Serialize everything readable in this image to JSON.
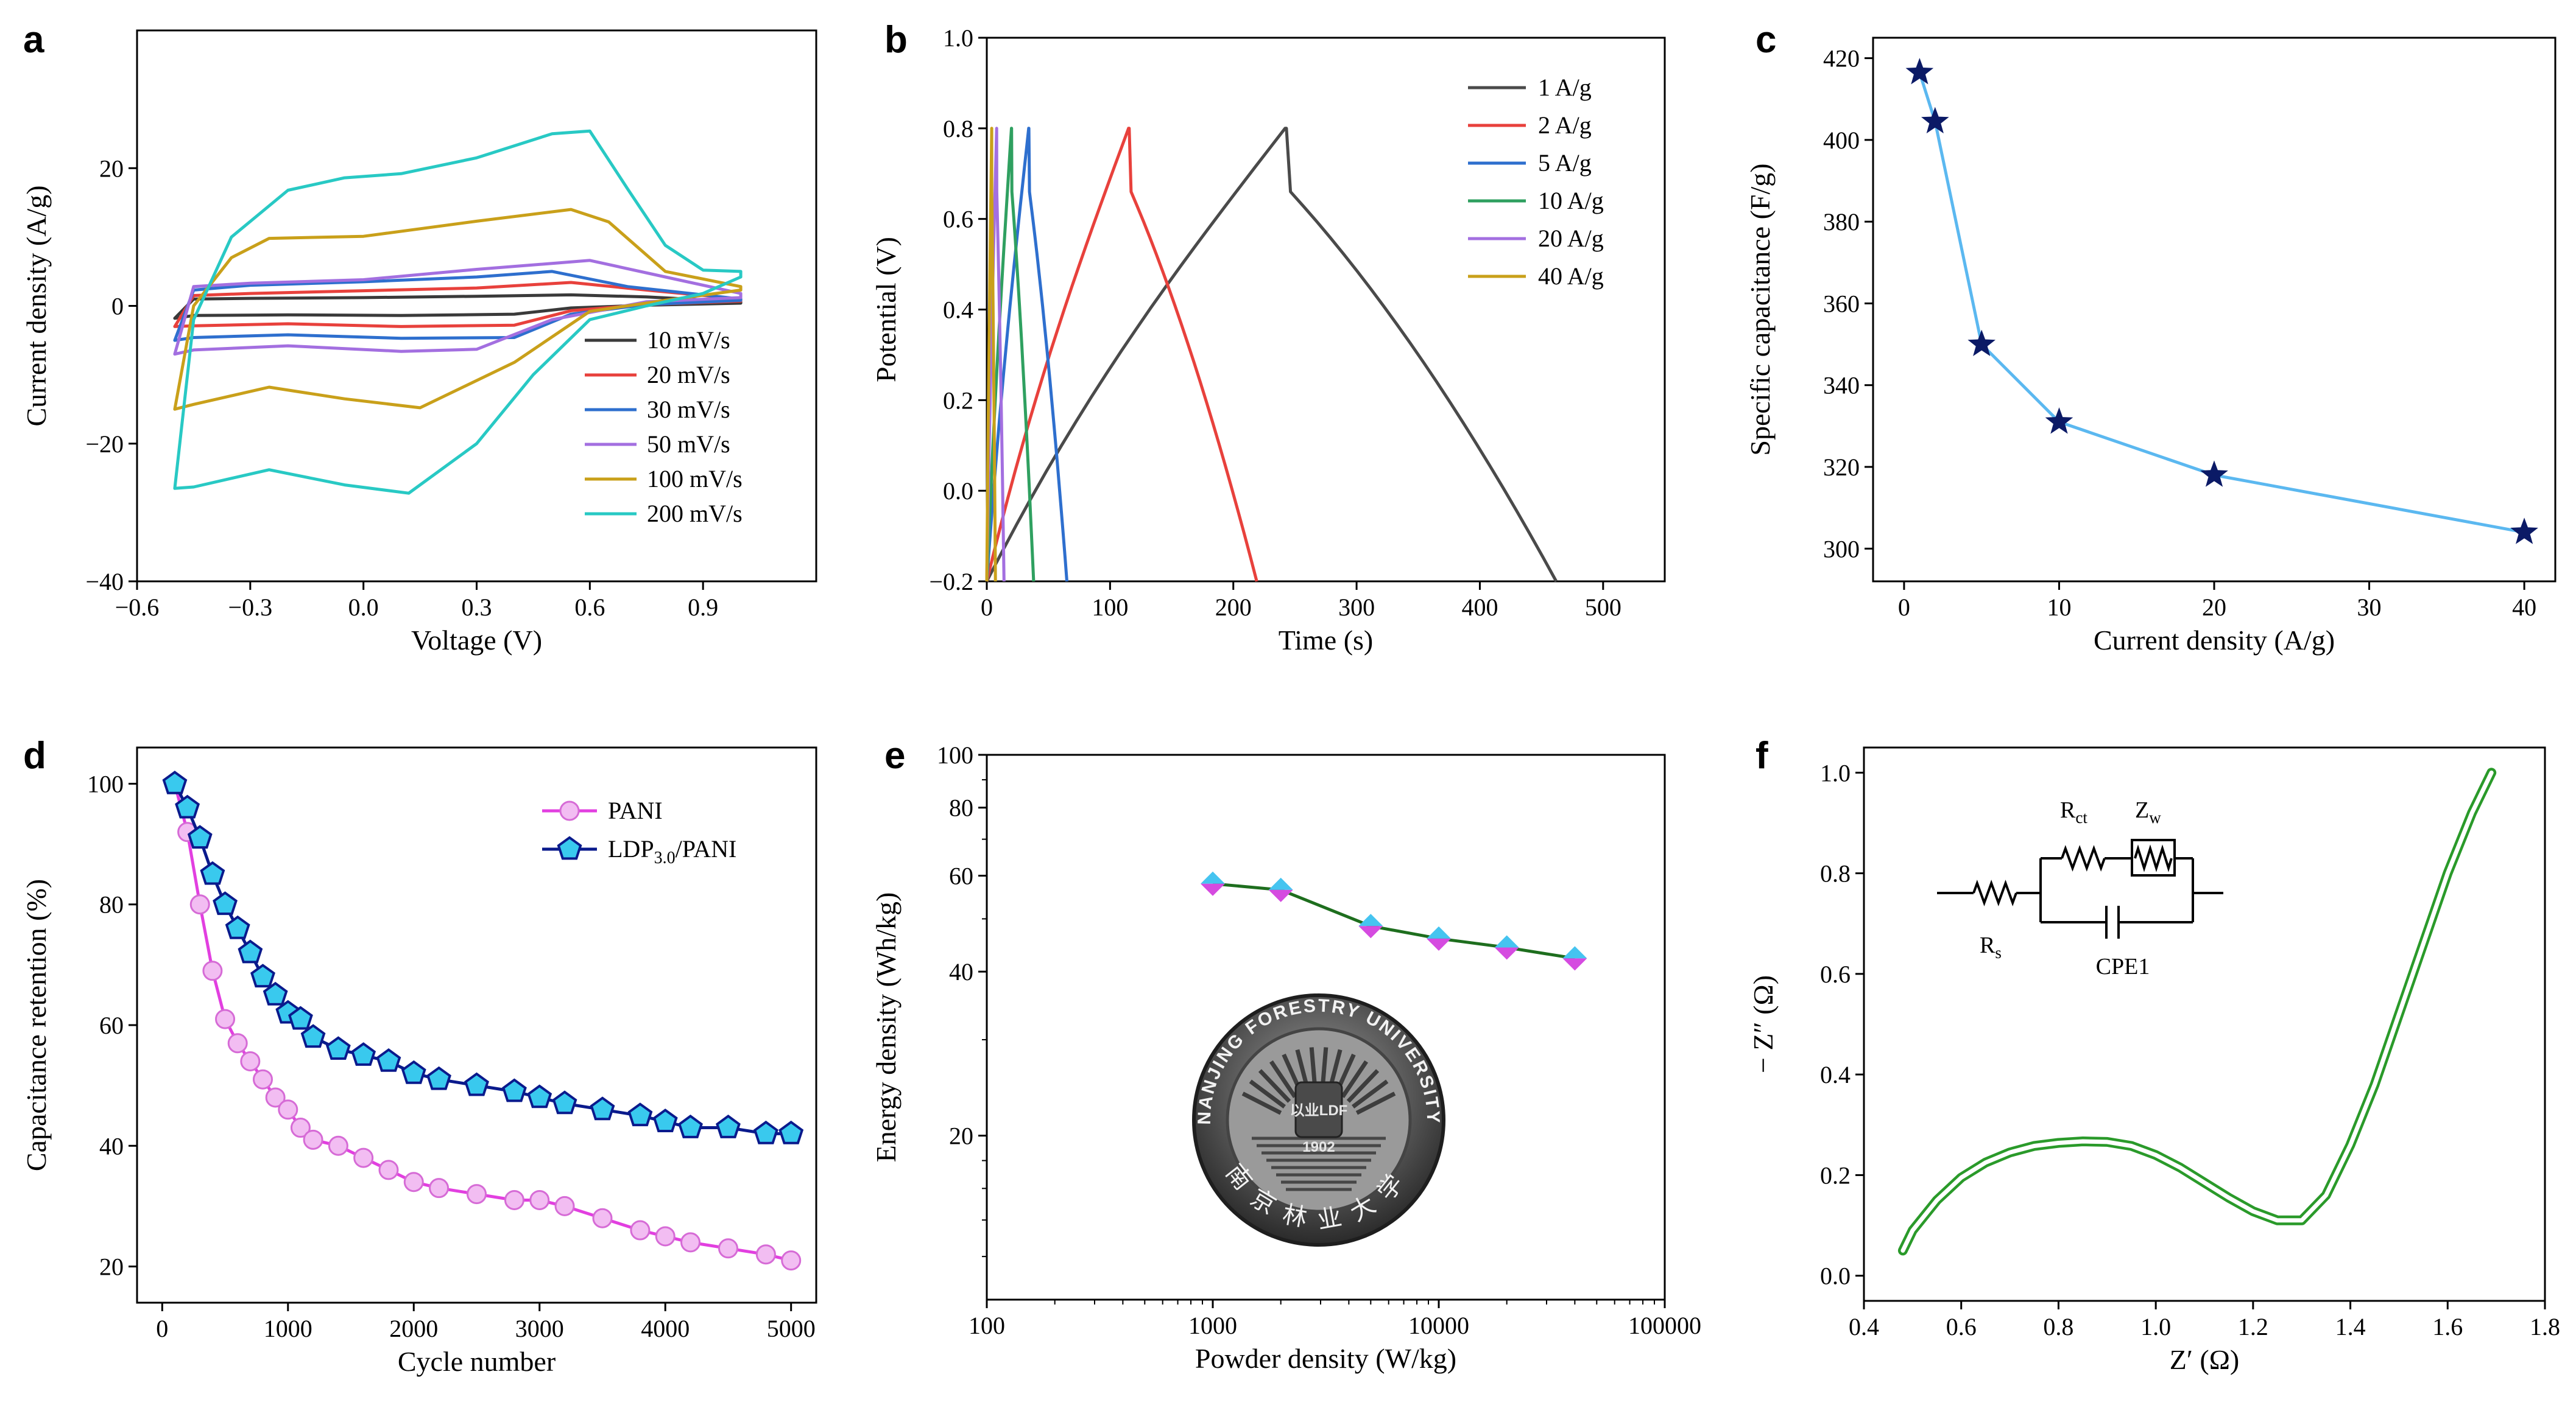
{
  "figure": {
    "seal": {
      "ring_text": "NANJING FORESTRY UNIVERSITY",
      "year": "1902",
      "crest_text": "以业LDF",
      "chinese_name": "南京林业大学"
    }
  },
  "chart_data": [
    {
      "panel": "a",
      "type": "line",
      "title": "",
      "xlabel": "Voltage (V)",
      "ylabel": "Current density (A/g)",
      "xlim": [
        -0.6,
        1.2
      ],
      "ylim": [
        -40,
        40
      ],
      "xticks": [
        -0.6,
        -0.3,
        0.0,
        0.3,
        0.6,
        0.9
      ],
      "xtick_labels": [
        "−0.6",
        "−0.3",
        "0.0",
        "0.3",
        "0.6",
        "0.9"
      ],
      "yticks": [
        -40,
        -20,
        0,
        20
      ],
      "ytick_labels": [
        "−40",
        "−20",
        "0",
        "20"
      ],
      "legend_position": "lower-right",
      "series": [
        {
          "name": "10 mV/s",
          "color": "#3a3a3a",
          "upper": [
            [
              -0.5,
              -1.8
            ],
            [
              -0.45,
              1.0
            ],
            [
              -0.3,
              1.1
            ],
            [
              0.0,
              1.2
            ],
            [
              0.3,
              1.4
            ],
            [
              0.55,
              1.6
            ],
            [
              0.75,
              1.3
            ],
            [
              1.0,
              0.6
            ]
          ],
          "lower": [
            [
              1.0,
              0.4
            ],
            [
              0.75,
              0.1
            ],
            [
              0.55,
              -0.3
            ],
            [
              0.4,
              -1.2
            ],
            [
              0.1,
              -1.4
            ],
            [
              -0.2,
              -1.3
            ],
            [
              -0.45,
              -1.4
            ],
            [
              -0.5,
              -1.8
            ]
          ]
        },
        {
          "name": "20 mV/s",
          "color": "#e8413c",
          "upper": [
            [
              -0.5,
              -3.0
            ],
            [
              -0.45,
              1.5
            ],
            [
              -0.3,
              1.8
            ],
            [
              0.0,
              2.2
            ],
            [
              0.3,
              2.6
            ],
            [
              0.55,
              3.4
            ],
            [
              0.75,
              2.3
            ],
            [
              1.0,
              1.0
            ]
          ],
          "lower": [
            [
              1.0,
              0.7
            ],
            [
              0.75,
              0.2
            ],
            [
              0.55,
              -0.7
            ],
            [
              0.4,
              -2.8
            ],
            [
              0.1,
              -3.0
            ],
            [
              -0.2,
              -2.6
            ],
            [
              -0.45,
              -2.9
            ],
            [
              -0.5,
              -3.0
            ]
          ]
        },
        {
          "name": "30 mV/s",
          "color": "#2e6fce",
          "upper": [
            [
              -0.5,
              -5.0
            ],
            [
              -0.45,
              2.3
            ],
            [
              -0.3,
              3.0
            ],
            [
              0.0,
              3.5
            ],
            [
              0.3,
              4.2
            ],
            [
              0.5,
              5.0
            ],
            [
              0.7,
              2.8
            ],
            [
              1.0,
              1.0
            ]
          ],
          "lower": [
            [
              1.0,
              0.8
            ],
            [
              0.75,
              0.2
            ],
            [
              0.55,
              -1.2
            ],
            [
              0.4,
              -4.6
            ],
            [
              0.1,
              -4.7
            ],
            [
              -0.2,
              -4.2
            ],
            [
              -0.45,
              -4.6
            ],
            [
              -0.5,
              -5.0
            ]
          ]
        },
        {
          "name": "50 mV/s",
          "color": "#a36fe0",
          "upper": [
            [
              -0.5,
              -7.0
            ],
            [
              -0.45,
              2.8
            ],
            [
              -0.3,
              3.3
            ],
            [
              0.0,
              3.8
            ],
            [
              0.3,
              5.3
            ],
            [
              0.6,
              6.6
            ],
            [
              0.8,
              4.2
            ],
            [
              1.0,
              1.8
            ]
          ],
          "lower": [
            [
              1.0,
              1.2
            ],
            [
              0.75,
              0.6
            ],
            [
              0.5,
              -2.0
            ],
            [
              0.3,
              -6.3
            ],
            [
              0.1,
              -6.6
            ],
            [
              -0.2,
              -5.8
            ],
            [
              -0.45,
              -6.4
            ],
            [
              -0.5,
              -7.0
            ]
          ]
        },
        {
          "name": "100 mV/s",
          "color": "#c9a01a",
          "upper": [
            [
              -0.5,
              -15.0
            ],
            [
              -0.45,
              0.0
            ],
            [
              -0.35,
              7.0
            ],
            [
              -0.25,
              9.8
            ],
            [
              0.0,
              10.1
            ],
            [
              0.3,
              12.3
            ],
            [
              0.55,
              14.0
            ],
            [
              0.65,
              12.2
            ],
            [
              0.8,
              5.0
            ],
            [
              1.0,
              2.8
            ]
          ],
          "lower": [
            [
              1.0,
              2.3
            ],
            [
              0.8,
              0.8
            ],
            [
              0.6,
              -0.8
            ],
            [
              0.4,
              -8.2
            ],
            [
              0.15,
              -14.8
            ],
            [
              -0.05,
              -13.5
            ],
            [
              -0.25,
              -11.8
            ],
            [
              -0.45,
              -14.3
            ],
            [
              -0.5,
              -15.0
            ]
          ]
        },
        {
          "name": "200 mV/s",
          "color": "#28c9c4",
          "upper": [
            [
              -0.5,
              -26.5
            ],
            [
              -0.45,
              -2.0
            ],
            [
              -0.35,
              10.0
            ],
            [
              -0.2,
              16.8
            ],
            [
              -0.05,
              18.6
            ],
            [
              0.1,
              19.2
            ],
            [
              0.3,
              21.5
            ],
            [
              0.5,
              25.0
            ],
            [
              0.6,
              25.4
            ],
            [
              0.7,
              17.0
            ],
            [
              0.8,
              8.8
            ],
            [
              0.9,
              5.2
            ],
            [
              1.0,
              5.0
            ]
          ],
          "lower": [
            [
              1.0,
              4.2
            ],
            [
              0.9,
              1.8
            ],
            [
              0.75,
              0.0
            ],
            [
              0.6,
              -2.0
            ],
            [
              0.45,
              -10.0
            ],
            [
              0.3,
              -20.0
            ],
            [
              0.12,
              -27.2
            ],
            [
              -0.05,
              -26.0
            ],
            [
              -0.25,
              -23.8
            ],
            [
              -0.45,
              -26.3
            ],
            [
              -0.5,
              -26.5
            ]
          ]
        }
      ]
    },
    {
      "panel": "b",
      "type": "line",
      "title": "",
      "xlabel": "Time (s)",
      "ylabel": "Potential (V)",
      "xlim": [
        0,
        550
      ],
      "ylim": [
        -0.2,
        1.0
      ],
      "xticks": [
        0,
        100,
        200,
        300,
        400,
        500
      ],
      "xtick_labels": [
        "0",
        "100",
        "200",
        "300",
        "400",
        "500"
      ],
      "yticks": [
        -0.2,
        0.0,
        0.2,
        0.4,
        0.6,
        0.8,
        1.0
      ],
      "ytick_labels": [
        "−0.2",
        "0.0",
        "0.2",
        "0.4",
        "0.6",
        "0.8",
        "1.0"
      ],
      "legend_position": "top-right",
      "series": [
        {
          "name": "1 A/g",
          "color": "#4a4a4a",
          "t_charge": 242,
          "t_end": 462
        },
        {
          "name": "2 A/g",
          "color": "#e8413c",
          "t_charge": 115,
          "t_end": 219
        },
        {
          "name": "5 A/g",
          "color": "#2e6fce",
          "t_charge": 34,
          "t_end": 65
        },
        {
          "name": "10 A/g",
          "color": "#2fa060",
          "t_charge": 20,
          "t_end": 38
        },
        {
          "name": "20 A/g",
          "color": "#a36fe0",
          "t_charge": 8,
          "t_end": 14
        },
        {
          "name": "40 A/g",
          "color": "#c9a01a",
          "t_charge": 4,
          "t_end": 7
        }
      ]
    },
    {
      "panel": "c",
      "type": "line",
      "title": "",
      "xlabel": "Current density (A/g)",
      "ylabel": "Specific capacitance (F/g)",
      "xlim": [
        -2,
        42
      ],
      "ylim": [
        292,
        425
      ],
      "xticks": [
        0,
        10,
        20,
        30,
        40
      ],
      "xtick_labels": [
        "0",
        "10",
        "20",
        "30",
        "40"
      ],
      "yticks": [
        300,
        320,
        340,
        360,
        380,
        400,
        420
      ],
      "ytick_labels": [
        "300",
        "320",
        "340",
        "360",
        "380",
        "400",
        "420"
      ],
      "line_color": "#5bb8f0",
      "marker_color": "#0b1a66",
      "x": [
        1,
        2,
        5,
        10,
        20,
        40
      ],
      "y": [
        416.5,
        404.5,
        350,
        331,
        318,
        304
      ]
    },
    {
      "panel": "d",
      "type": "line",
      "title": "",
      "xlabel": "Cycle number",
      "ylabel": "Capacitance retention (%)",
      "xlim": [
        -200,
        5200
      ],
      "ylim": [
        14,
        106
      ],
      "xticks": [
        0,
        1000,
        2000,
        3000,
        4000,
        5000
      ],
      "xtick_labels": [
        "0",
        "1000",
        "2000",
        "3000",
        "4000",
        "5000"
      ],
      "yticks": [
        20,
        40,
        60,
        80,
        100
      ],
      "ytick_labels": [
        "20",
        "40",
        "60",
        "80",
        "100"
      ],
      "legend_position": "top-right",
      "series": [
        {
          "name": "PANI",
          "label_main": "PANI",
          "label_sub": "",
          "label_after": "",
          "line_color": "#e23fe0",
          "marker_color": "#f2bdf2",
          "x": [
            100,
            200,
            300,
            400,
            500,
            600,
            700,
            800,
            900,
            1000,
            1100,
            1200,
            1400,
            1600,
            1800,
            2000,
            2200,
            2500,
            2800,
            3000,
            3200,
            3500,
            3800,
            4000,
            4200,
            4500,
            4800,
            5000
          ],
          "y": [
            100,
            92,
            80,
            69,
            61,
            57,
            54,
            51,
            48,
            46,
            43,
            41,
            40,
            38,
            36,
            34,
            33,
            32,
            31,
            31,
            30,
            28,
            26,
            25,
            24,
            23,
            22,
            21
          ]
        },
        {
          "name": "LDP3.0/PANI",
          "label_main": "LDP",
          "label_sub": "3.0",
          "label_after": "/PANI",
          "line_color": "#0a1a8c",
          "marker_color": "#39c9ee",
          "x": [
            100,
            200,
            300,
            400,
            500,
            600,
            700,
            800,
            900,
            1000,
            1100,
            1200,
            1400,
            1600,
            1800,
            2000,
            2200,
            2500,
            2800,
            3000,
            3200,
            3500,
            3800,
            4000,
            4200,
            4500,
            4800,
            5000
          ],
          "y": [
            100,
            96,
            91,
            85,
            80,
            76,
            72,
            68,
            65,
            62,
            61,
            58,
            56,
            55,
            54,
            52,
            51,
            50,
            49,
            48,
            47,
            46,
            45,
            44,
            43,
            43,
            42,
            42
          ]
        }
      ]
    },
    {
      "panel": "e",
      "type": "line",
      "title": "",
      "xlabel": "Powder density (W/kg)",
      "ylabel": "Energy density (Wh/kg)",
      "xscale": "log",
      "yscale": "log",
      "xlim": [
        100,
        100000
      ],
      "ylim": [
        10,
        100
      ],
      "xticks": [
        100,
        1000,
        10000,
        100000
      ],
      "xtick_labels": [
        "100",
        "1000",
        "10000",
        "100000"
      ],
      "yticks": [
        20,
        40,
        60,
        80,
        100
      ],
      "ytick_labels": [
        "20",
        "40",
        "60",
        "80",
        "100"
      ],
      "line_color": "#1e6e1e",
      "marker_top": "#45c4f0",
      "marker_bottom": "#d54be0",
      "x": [
        1000,
        2000,
        5000,
        10000,
        20000,
        40000
      ],
      "y": [
        58,
        56.5,
        48.5,
        46,
        44.3,
        42.3
      ]
    },
    {
      "panel": "f",
      "type": "line",
      "title": "",
      "xlabel": "Z′ (Ω)",
      "ylabel": "− Z″ (Ω)",
      "xlim": [
        0.4,
        1.8
      ],
      "ylim": [
        -0.05,
        1.05
      ],
      "xticks": [
        0.4,
        0.6,
        0.8,
        1.0,
        1.2,
        1.4,
        1.6,
        1.8
      ],
      "xtick_labels": [
        "0.4",
        "0.6",
        "0.8",
        "1.0",
        "1.2",
        "1.4",
        "1.6",
        "1.8"
      ],
      "yticks": [
        0.0,
        0.2,
        0.4,
        0.6,
        0.8,
        1.0
      ],
      "ytick_labels": [
        "0.0",
        "0.2",
        "0.4",
        "0.6",
        "0.8",
        "1.0"
      ],
      "line_color": "#2a9a2a",
      "x": [
        0.48,
        0.5,
        0.55,
        0.6,
        0.65,
        0.7,
        0.75,
        0.8,
        0.85,
        0.9,
        0.95,
        1.0,
        1.05,
        1.1,
        1.15,
        1.2,
        1.25,
        1.3,
        1.35,
        1.4,
        1.45,
        1.5,
        1.55,
        1.6,
        1.65,
        1.69
      ],
      "y": [
        0.05,
        0.09,
        0.15,
        0.195,
        0.225,
        0.245,
        0.258,
        0.264,
        0.267,
        0.266,
        0.258,
        0.24,
        0.215,
        0.185,
        0.155,
        0.128,
        0.11,
        0.11,
        0.16,
        0.26,
        0.38,
        0.52,
        0.66,
        0.8,
        0.92,
        1.0
      ],
      "circuit": {
        "rs": "R",
        "rs_sub": "s",
        "rct": "R",
        "rct_sub": "ct",
        "zw": "Z",
        "zw_sub": "w",
        "cpe": "CPE1"
      }
    }
  ]
}
